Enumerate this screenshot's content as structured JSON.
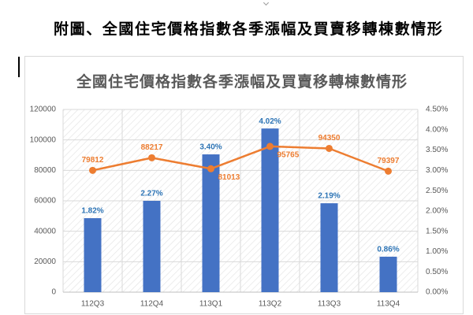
{
  "page_title": "附圖、全國住宅價格指數各季漲幅及買賣移轉棟數情形",
  "chart_data": {
    "type": "bar",
    "title": "全國住宅價格指數各季漲幅及買賣移轉棟數情形",
    "categories": [
      "112Q3",
      "112Q4",
      "113Q1",
      "113Q2",
      "113Q3",
      "113Q4"
    ],
    "bars": {
      "color": "#4472c4",
      "label_color": "#2e75b6",
      "values": [
        48600,
        60000,
        90500,
        107500,
        58400,
        23300
      ],
      "data_labels": [
        "1.82%",
        "2.27%",
        "3.40%",
        "4.02%",
        "2.19%",
        "0.86%"
      ]
    },
    "line": {
      "color": "#ed7d31",
      "values": [
        3.0,
        3.31,
        3.04,
        3.59,
        3.54,
        2.98
      ],
      "data_labels": [
        "79812",
        "88217",
        "81013",
        "95765",
        "94350",
        "79397"
      ]
    },
    "y_left": {
      "range": [
        0,
        120000
      ],
      "step": 20000,
      "tick_labels": [
        "0",
        "20000",
        "40000",
        "60000",
        "80000",
        "100000",
        "120000"
      ]
    },
    "y_right": {
      "range": [
        0,
        4.5
      ],
      "step": 0.5,
      "tick_labels": [
        "0.00%",
        "0.50%",
        "1.00%",
        "1.50%",
        "2.00%",
        "2.50%",
        "3.00%",
        "3.50%",
        "4.00%",
        "4.50%"
      ]
    },
    "grid": true
  }
}
